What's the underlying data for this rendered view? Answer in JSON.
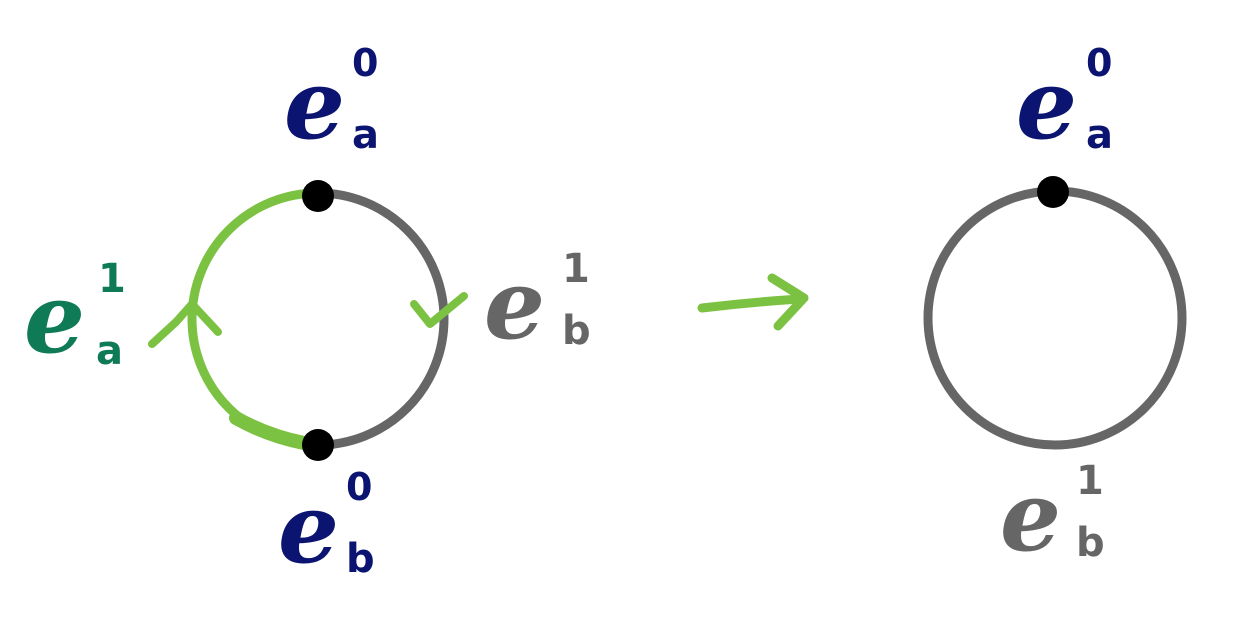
{
  "colors": {
    "navy": "#0b1470",
    "teal": "#0e7a56",
    "green": "#7cc242",
    "gray": "#666666",
    "black": "#000000"
  },
  "left_diagram": {
    "top_vertex": {
      "letter": "e",
      "superscript": "0",
      "subscript": "a"
    },
    "bottom_vertex": {
      "letter": "e",
      "superscript": "0",
      "subscript": "b"
    },
    "left_edge": {
      "letter": "e",
      "superscript": "1",
      "subscript": "a"
    },
    "right_edge": {
      "letter": "e",
      "superscript": "1",
      "subscript": "b"
    }
  },
  "right_diagram": {
    "top_vertex": {
      "letter": "e",
      "superscript": "0",
      "subscript": "a"
    },
    "edge": {
      "letter": "e",
      "superscript": "1",
      "subscript": "b"
    }
  }
}
